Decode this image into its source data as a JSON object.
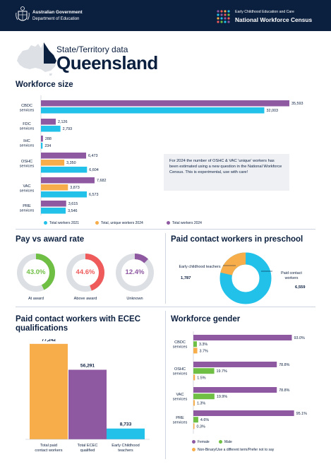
{
  "header": {
    "gov_line1": "Australian Government",
    "gov_line2": "Department of Education",
    "census_line1": "Early Childhood Education and Care",
    "census_line2": "National Workforce Census"
  },
  "page": {
    "subtitle": "State/Territory data",
    "state": "Queensland"
  },
  "sections": {
    "workforce_size": "Workforce size",
    "pay": "Pay vs award rate",
    "preschool": "Paid contact workers in preschool",
    "qualifications": "Paid contact workers with ECEC qualifications",
    "gender": "Workforce gender"
  },
  "note": "For 2024 the number of OSHC & VAC 'unique' workers has been estimated using a new question in the National Workforce Census. This is experimental, use with care!",
  "colors": {
    "navy": "#0b1f3f",
    "purple": "#8e59a1",
    "cyan": "#22c1ea",
    "orange": "#f6ad4a",
    "green": "#6fbf44",
    "red": "#ef5b5b",
    "grey": "#dcdfe3"
  },
  "chart_data": [
    {
      "type": "bar",
      "orientation": "horizontal",
      "title": "Workforce size",
      "categories": [
        "CBDC services",
        "FDC services",
        "IHC services",
        "OSHC services",
        "VAC services",
        "PRE services"
      ],
      "series": [
        {
          "name": "Total workers 2024",
          "values": [
            35593,
            2126,
            288,
            6473,
            7682,
            3615
          ],
          "labels": [
            "35,593",
            "2,126",
            "288",
            "6,473",
            "7,682",
            "3,615"
          ]
        },
        {
          "name": "Total, unique workers 2024",
          "values": [
            null,
            null,
            null,
            3350,
            3873,
            null
          ],
          "labels": [
            "",
            "",
            "",
            "3,350",
            "3,873",
            ""
          ]
        },
        {
          "name": "Total workers 2021",
          "values": [
            32003,
            2793,
            234,
            6604,
            6573,
            3546
          ],
          "labels": [
            "32,003",
            "2,793",
            "234",
            "6,604",
            "6,573",
            "3,546"
          ]
        }
      ],
      "xlim": [
        0,
        36000
      ],
      "legend": [
        "Total workers 2021",
        "Total, unique workers 2024",
        "Total workers 2024"
      ]
    },
    {
      "type": "pie",
      "title": "Pay vs award rate",
      "slices": [
        {
          "label": "At award",
          "value": 43.0,
          "pct": "43.0%"
        },
        {
          "label": "Above award",
          "value": 44.6,
          "pct": "44.6%"
        },
        {
          "label": "Unknown",
          "value": 12.4,
          "pct": "12.4%"
        }
      ]
    },
    {
      "type": "pie",
      "title": "Paid contact workers in preschool",
      "slices": [
        {
          "label": "Early childhood teachers",
          "value": 1787,
          "value_label": "1,787"
        },
        {
          "label": "Paid contact workers",
          "value": 6559,
          "value_label": "6,559"
        }
      ]
    },
    {
      "type": "bar",
      "title": "Paid contact workers with ECEC qualifications",
      "categories": [
        "Total paid contact workers",
        "Total ECEC qualified",
        "Early Childhood teachers"
      ],
      "values": [
        77242,
        56291,
        8733
      ],
      "labels": [
        "77,242",
        "56,291",
        "8,733"
      ],
      "ylim": [
        0,
        80000
      ]
    },
    {
      "type": "bar",
      "orientation": "horizontal",
      "title": "Workforce gender",
      "categories": [
        "CBDC services",
        "OSHC services",
        "VAC services",
        "PRE services"
      ],
      "series": [
        {
          "name": "Female",
          "values": [
            93.0,
            78.8,
            78.8,
            95.1
          ],
          "labels": [
            "93.0%",
            "78.8%",
            "78.8%",
            "95.1%"
          ]
        },
        {
          "name": "Male",
          "values": [
            3.3,
            19.7,
            19.9,
            4.6
          ],
          "labels": [
            "3.3%",
            "19.7%",
            "19.9%",
            "4.6%"
          ]
        },
        {
          "name": "Non-Binary/Use a different term/Prefer not to say",
          "values": [
            3.7,
            1.5,
            1.3,
            0.3
          ],
          "labels": [
            "3.7%",
            "1.5%",
            "1.3%",
            "0.3%"
          ]
        }
      ],
      "xlim": [
        0,
        100
      ],
      "legend": [
        "Female",
        "Male",
        "Non-Binary/Use a different term/Prefer not to say"
      ]
    }
  ]
}
